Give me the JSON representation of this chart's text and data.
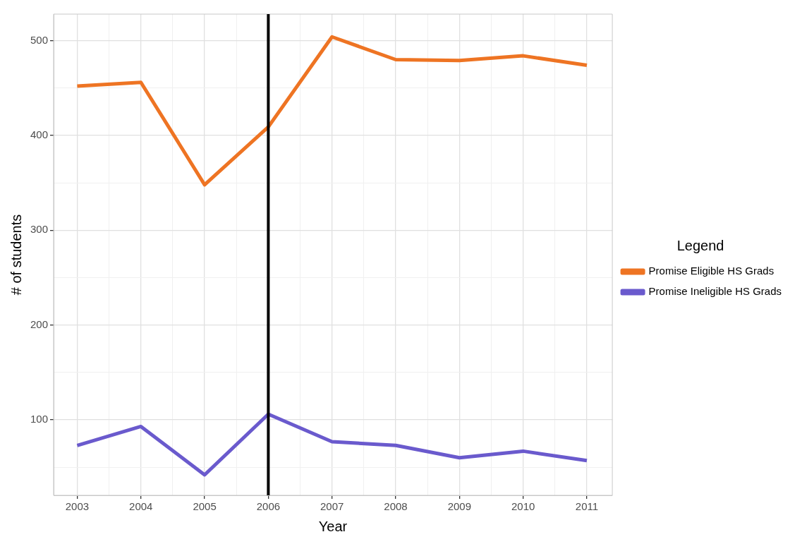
{
  "chart_data": {
    "type": "line",
    "xlabel": "Year",
    "ylabel": "# of students",
    "legend_title": "Legend",
    "x": [
      2003,
      2004,
      2005,
      2006,
      2007,
      2008,
      2009,
      2010,
      2011
    ],
    "series": [
      {
        "name": "Promise Eligible HS Grads",
        "color": "#ee7423",
        "values": [
          452,
          456,
          348,
          409,
          504,
          480,
          479,
          484,
          474
        ]
      },
      {
        "name": "Promise Ineligible HS Grads",
        "color": "#6a5acd",
        "values": [
          73,
          93,
          42,
          106,
          77,
          73,
          60,
          67,
          57
        ]
      }
    ],
    "xlim": [
      2002.63,
      2011.4
    ],
    "ylim": [
      20.4,
      528
    ],
    "xticks": [
      2003,
      {
        "value": 2003.5,
        "label": null
      },
      2004,
      {
        "value": 2004.5,
        "label": null
      },
      2005,
      {
        "value": 2005.5,
        "label": null
      },
      2006,
      {
        "value": 2006.5,
        "label": null
      },
      2007,
      {
        "value": 2007.5,
        "label": null
      },
      2008,
      {
        "value": 2008.5,
        "label": null
      },
      2009,
      {
        "value": 2009.5,
        "label": null
      },
      2010,
      {
        "value": 2010.5,
        "label": null
      },
      2011
    ],
    "yticks": [
      {
        "value": 50,
        "label": null
      },
      100,
      {
        "value": 150,
        "label": null
      },
      200,
      {
        "value": 250,
        "label": null
      },
      300,
      {
        "value": 350,
        "label": null
      },
      400,
      {
        "value": 450,
        "label": null
      },
      500
    ],
    "ref_lines": [
      {
        "axis": "x",
        "value": 2006,
        "color": "#000000"
      }
    ],
    "grid": true,
    "legend": "right",
    "marker": "none",
    "line_style": "solid"
  }
}
